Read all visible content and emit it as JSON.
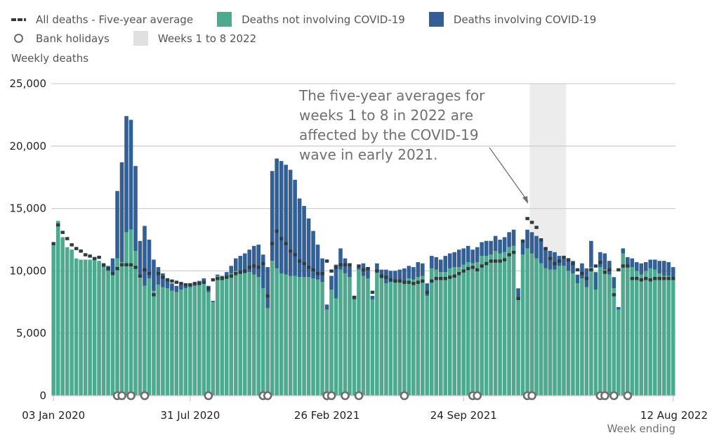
{
  "chart_data": {
    "type": "bar",
    "stacked": true,
    "title": "",
    "ylabel": "Weekly deaths",
    "xlabel": "Week ending",
    "ylim": [
      0,
      25000
    ],
    "yticks": [
      "0",
      "5,000",
      "10,000",
      "15,000",
      "20,000",
      "25,000"
    ],
    "ytick_values": [
      0,
      5000,
      10000,
      15000,
      20000,
      25000
    ],
    "xtick_labels": [
      {
        "label": "03 Jan 2020",
        "week_index": 0
      },
      {
        "label": "31 Jul 2020",
        "week_index": 30
      },
      {
        "label": "26 Feb 2021",
        "week_index": 60
      },
      {
        "label": "24 Sep 2021",
        "week_index": 90
      },
      {
        "label": "12 Aug 2022",
        "week_index": 136
      }
    ],
    "grid": true,
    "legend_position": "top",
    "legend": [
      {
        "label": "All deaths - Five-year average",
        "kind": "dash",
        "color": "#2e3b3f"
      },
      {
        "label": "Deaths not involving COVID-19",
        "kind": "square",
        "color": "#4fa98e"
      },
      {
        "label": "Deaths involving COVID-19",
        "kind": "square",
        "color": "#335f94"
      },
      {
        "label": "Bank holidays",
        "kind": "circle",
        "color": "#6d6d6d"
      },
      {
        "label": "Weeks 1 to 8 2022",
        "kind": "square",
        "color": "#e0e0e0"
      }
    ],
    "highlight_band": {
      "label": "Weeks 1 to 8 2022",
      "start_week_index": 105,
      "end_week_index": 112
    },
    "annotation": {
      "lines": [
        "The five-year averages for",
        "weeks 1 to 8 in 2022 are",
        "affected by the COVID-19",
        "wave in early 2021."
      ],
      "points_to_week_index": 105
    },
    "bank_holiday_week_indices": [
      14,
      15,
      17,
      20,
      34,
      46,
      47,
      60,
      61,
      64,
      67,
      77,
      92,
      93,
      104,
      105,
      120,
      121,
      123,
      126
    ],
    "series": [
      {
        "name": "Deaths not involving COVID-19",
        "color": "#4fa98e",
        "values": [
          12250,
          14000,
          12700,
          11900,
          11700,
          11000,
          10900,
          10900,
          10900,
          11000,
          10800,
          10300,
          10000,
          9700,
          11000,
          10700,
          13100,
          13300,
          11600,
          9500,
          8800,
          9400,
          8400,
          8900,
          8700,
          8600,
          8400,
          8300,
          8500,
          8600,
          8700,
          8800,
          9000,
          9100,
          8300,
          7500,
          9600,
          9400,
          9600,
          9800,
          10000,
          10000,
          9800,
          9900,
          9700,
          9500,
          8600,
          7000,
          10800,
          10200,
          9800,
          9700,
          9600,
          9600,
          9500,
          9500,
          9500,
          9400,
          9300,
          9100,
          6900,
          8500,
          7800,
          10100,
          9800,
          9500,
          7700,
          10100,
          9600,
          9400,
          7700,
          10000,
          9400,
          9000,
          9100,
          9100,
          9200,
          9200,
          9400,
          9300,
          9500,
          9600,
          8000,
          10200,
          10100,
          9900,
          9900,
          10200,
          10300,
          10300,
          10500,
          10700,
          10600,
          10700,
          11200,
          11200,
          11300,
          11600,
          11400,
          11500,
          11900,
          12000,
          7900,
          11300,
          11800,
          11400,
          11000,
          10600,
          10200,
          10100,
          10100,
          10400,
          10400,
          10000,
          9800,
          9000,
          9400,
          8700,
          10300,
          8500,
          10300,
          10100,
          9700,
          8600,
          6900,
          11400,
          10400,
          10300,
          10000,
          9700,
          10000,
          10200,
          10100,
          9800,
          9600,
          9600,
          9500
        ]
      },
      {
        "name": "Deaths involving COVID-19",
        "color": "#335f94",
        "values": [
          0,
          0,
          0,
          0,
          0,
          0,
          0,
          0,
          0,
          0,
          0,
          100,
          400,
          1300,
          5400,
          8000,
          9300,
          8800,
          6800,
          2900,
          4800,
          3100,
          2500,
          1400,
          1100,
          700,
          600,
          500,
          400,
          300,
          300,
          200,
          200,
          300,
          500,
          100,
          100,
          200,
          300,
          600,
          1000,
          1200,
          1600,
          1800,
          2300,
          2600,
          2700,
          3300,
          7200,
          8800,
          9000,
          8800,
          8500,
          7700,
          6300,
          5700,
          4700,
          3800,
          2800,
          1900,
          400,
          1100,
          2700,
          1700,
          1200,
          900,
          300,
          200,
          1000,
          900,
          300,
          600,
          700,
          1100,
          900,
          900,
          900,
          1000,
          1000,
          1000,
          1200,
          1000,
          1000,
          1000,
          1000,
          1000,
          1300,
          1200,
          1200,
          1400,
          1300,
          1300,
          1100,
          1200,
          1100,
          1200,
          1100,
          1200,
          1100,
          1200,
          1200,
          1300,
          700,
          1000,
          1500,
          1700,
          1800,
          1800,
          1600,
          1500,
          1400,
          800,
          600,
          900,
          1000,
          700,
          1200,
          1500,
          2100,
          1400,
          1200,
          1300,
          1100,
          900,
          200,
          400,
          700,
          700,
          700,
          900,
          700,
          700,
          800,
          1000,
          1200,
          1100,
          800
        ]
      },
      {
        "name": "All deaths - Five-year average",
        "color": "#2e3b3f",
        "kind": "dash",
        "values": [
          12200,
          13700,
          13100,
          12600,
          12100,
          11800,
          11600,
          11300,
          11200,
          11000,
          11100,
          10500,
          10200,
          9800,
          10200,
          10500,
          10500,
          10500,
          10300,
          9600,
          10100,
          9800,
          8100,
          9800,
          9500,
          9300,
          9200,
          9100,
          9000,
          8900,
          8900,
          9000,
          9000,
          9100,
          8600,
          9300,
          9400,
          9400,
          9500,
          9600,
          9800,
          9900,
          10000,
          10300,
          10400,
          10300,
          10600,
          8000,
          12200,
          13200,
          12600,
          12200,
          11600,
          11300,
          10800,
          10600,
          10300,
          10100,
          9800,
          9800,
          10800,
          10000,
          10300,
          10500,
          10500,
          10500,
          7900,
          10400,
          10100,
          10200,
          8300,
          10000,
          9600,
          9500,
          9300,
          9200,
          9200,
          9100,
          9100,
          9000,
          9100,
          9200,
          8300,
          9200,
          9400,
          9400,
          9400,
          9500,
          9600,
          9800,
          10000,
          10200,
          10300,
          10100,
          10400,
          10600,
          10800,
          10800,
          10800,
          10900,
          11300,
          11500,
          7800,
          12400,
          14200,
          13900,
          13500,
          12500,
          11800,
          11000,
          10600,
          10800,
          11100,
          10900,
          10600,
          10100,
          9800,
          9400,
          10100,
          10400,
          10700,
          9900,
          10100,
          8100,
          10100,
          10400,
          10400,
          9400,
          9400,
          9300,
          9400,
          9300,
          9400,
          9400,
          9400,
          9400,
          9400
        ]
      }
    ]
  }
}
